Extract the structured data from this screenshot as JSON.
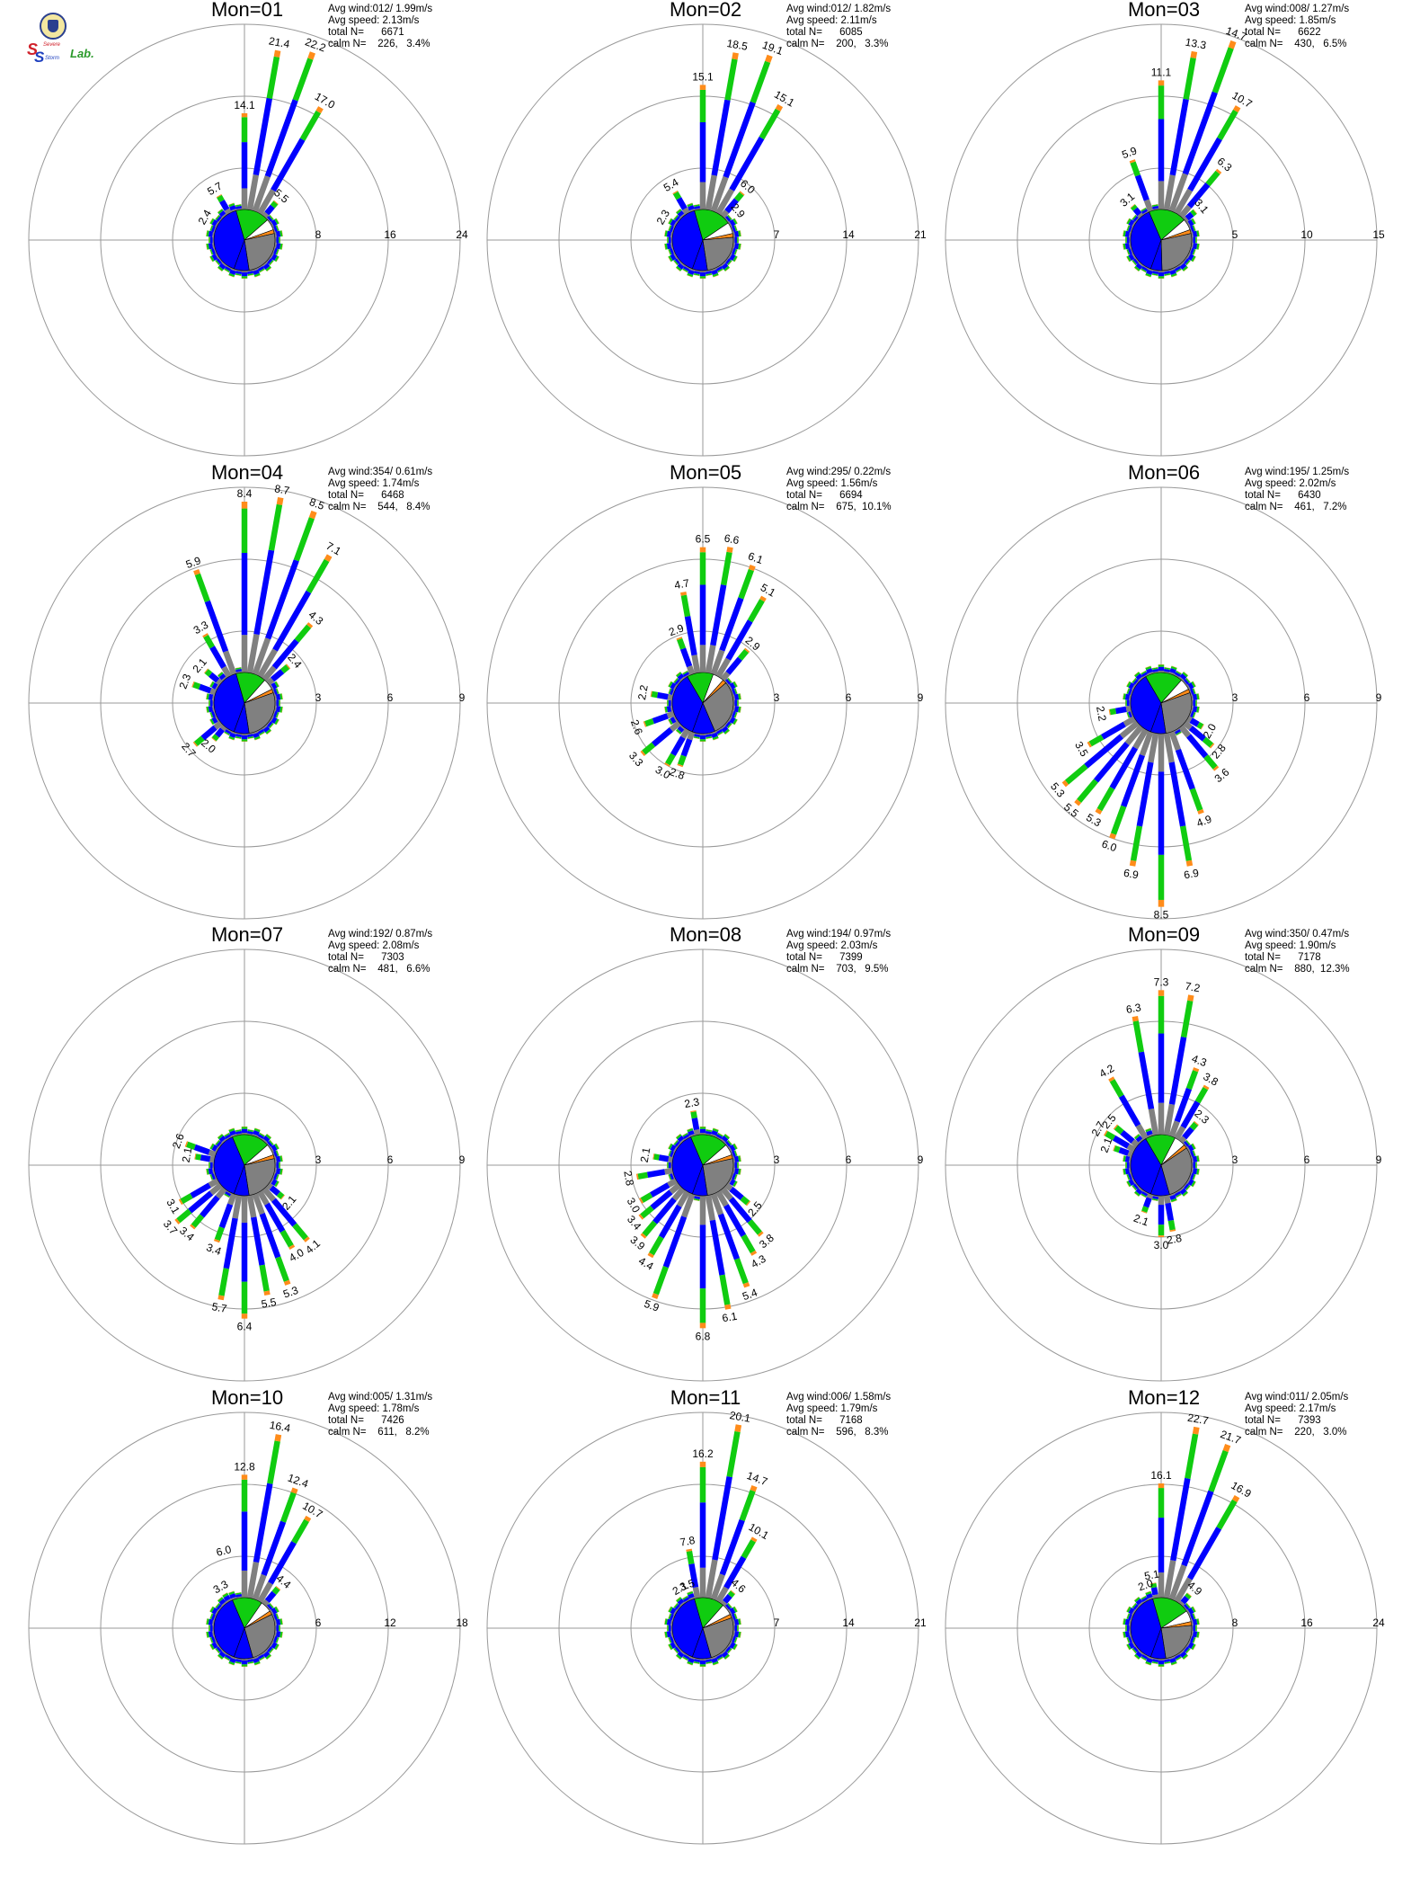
{
  "colors": {
    "blue": "#0000ff",
    "green": "#10cc10",
    "orange": "#ff8c1a",
    "red": "#ff0000",
    "magenta": "#cc00cc",
    "gray": "#808080",
    "grid": "#999999"
  },
  "logo": {
    "alt_text": "Severe Storm Lab.",
    "line1": "Severe",
    "line2": "Storm",
    "lab": "Lab."
  },
  "chart_data": [
    {
      "type": "wind-rose",
      "title": "Mon=01",
      "rings": [
        "8",
        "16",
        "24"
      ],
      "ring_max": 24,
      "stats": {
        "avg_wind": "Avg wind:012/ 1.99m/s",
        "avg_speed": "Avg speed: 2.13m/s",
        "total": "total N=      6671",
        "calm": "calm N=    226,   3.4%"
      },
      "labels": [
        {
          "dir": 300,
          "text": "2.4"
        },
        {
          "dir": 330,
          "text": "5.7"
        },
        {
          "dir": 0,
          "text": "14.1"
        },
        {
          "dir": 10,
          "text": "21.4"
        },
        {
          "dir": 20,
          "text": "22.2"
        },
        {
          "dir": 30,
          "text": "17.0"
        },
        {
          "dir": 40,
          "text": "5.5"
        }
      ],
      "pie": {
        "blue": 0.4,
        "green": 0.18,
        "orange": 0.02,
        "gray": 0.26
      }
    },
    {
      "type": "wind-rose",
      "title": "Mon=02",
      "rings": [
        "7",
        "14",
        "21"
      ],
      "ring_max": 21,
      "stats": {
        "avg_wind": "Avg wind:012/ 1.82m/s",
        "avg_speed": "Avg speed: 2.11m/s",
        "total": "total N=      6085",
        "calm": "calm N=    200,   3.3%"
      },
      "labels": [
        {
          "dir": 300,
          "text": "2.3"
        },
        {
          "dir": 330,
          "text": "5.4"
        },
        {
          "dir": 0,
          "text": "15.1"
        },
        {
          "dir": 10,
          "text": "18.5"
        },
        {
          "dir": 20,
          "text": "19.1"
        },
        {
          "dir": 30,
          "text": "15.1"
        },
        {
          "dir": 40,
          "text": "6.0"
        },
        {
          "dir": 50,
          "text": "2.9"
        }
      ],
      "pie": {
        "blue": 0.4,
        "green": 0.2,
        "orange": 0.02,
        "gray": 0.24
      }
    },
    {
      "type": "wind-rose",
      "title": "Mon=03",
      "rings": [
        "5",
        "10",
        "15"
      ],
      "ring_max": 15,
      "stats": {
        "avg_wind": "Avg wind:008/ 1.27m/s",
        "avg_speed": "Avg speed: 1.85m/s",
        "total": "total N=      6622",
        "calm": "calm N=    430,   6.5%"
      },
      "labels": [
        {
          "dir": 320,
          "text": "3.1"
        },
        {
          "dir": 340,
          "text": "5.9"
        },
        {
          "dir": 0,
          "text": "11.1"
        },
        {
          "dir": 10,
          "text": "13.3"
        },
        {
          "dir": 20,
          "text": "14.7"
        },
        {
          "dir": 30,
          "text": "10.7"
        },
        {
          "dir": 40,
          "text": "6.3"
        },
        {
          "dir": 50,
          "text": "3.1"
        }
      ],
      "pie": {
        "blue": 0.38,
        "green": 0.2,
        "orange": 0.02,
        "gray": 0.28
      }
    },
    {
      "type": "wind-rose",
      "title": "Mon=04",
      "rings": [
        "3",
        "6",
        "9"
      ],
      "ring_max": 9,
      "stats": {
        "avg_wind": "Avg wind:354/ 0.61m/s",
        "avg_speed": "Avg speed: 1.74m/s",
        "total": "total N=      6468",
        "calm": "calm N=    544,   8.4%"
      },
      "labels": [
        {
          "dir": 230,
          "text": "2.7"
        },
        {
          "dir": 220,
          "text": "2.0"
        },
        {
          "dir": 290,
          "text": "2.3"
        },
        {
          "dir": 310,
          "text": "2.1"
        },
        {
          "dir": 330,
          "text": "3.3"
        },
        {
          "dir": 340,
          "text": "5.9"
        },
        {
          "dir": 0,
          "text": "8.4"
        },
        {
          "dir": 10,
          "text": "8.7"
        },
        {
          "dir": 20,
          "text": "8.5"
        },
        {
          "dir": 30,
          "text": "7.1"
        },
        {
          "dir": 40,
          "text": "4.3"
        },
        {
          "dir": 50,
          "text": "2.4"
        }
      ],
      "pie": {
        "blue": 0.4,
        "green": 0.16,
        "orange": 0.02,
        "gray": 0.28
      }
    },
    {
      "type": "wind-rose",
      "title": "Mon=05",
      "rings": [
        "3",
        "6",
        "9"
      ],
      "ring_max": 9,
      "stats": {
        "avg_wind": "Avg wind:295/ 0.22m/s",
        "avg_speed": "Avg speed: 1.56m/s",
        "total": "total N=      6694",
        "calm": "calm N=    675,  10.1%"
      },
      "labels": [
        {
          "dir": 250,
          "text": "2.6"
        },
        {
          "dir": 280,
          "text": "2.2"
        },
        {
          "dir": 340,
          "text": "2.9"
        },
        {
          "dir": 350,
          "text": "4.7"
        },
        {
          "dir": 0,
          "text": "6.5"
        },
        {
          "dir": 10,
          "text": "6.6"
        },
        {
          "dir": 20,
          "text": "6.1"
        },
        {
          "dir": 30,
          "text": "5.1"
        },
        {
          "dir": 40,
          "text": "2.9"
        },
        {
          "dir": 200,
          "text": "2.8"
        },
        {
          "dir": 210,
          "text": "3.0"
        },
        {
          "dir": 230,
          "text": "3.3"
        }
      ],
      "pie": {
        "blue": 0.36,
        "green": 0.14,
        "orange": 0.02,
        "gray": 0.3
      }
    },
    {
      "type": "wind-rose",
      "title": "Mon=06",
      "rings": [
        "3",
        "6",
        "9"
      ],
      "ring_max": 9,
      "stats": {
        "avg_wind": "Avg wind:195/ 1.25m/s",
        "avg_speed": "Avg speed: 2.02m/s",
        "total": "total N=      6430",
        "calm": "calm N=    461,   7.2%"
      },
      "labels": [
        {
          "dir": 120,
          "text": "2.0"
        },
        {
          "dir": 130,
          "text": "2.8"
        },
        {
          "dir": 140,
          "text": "3.6"
        },
        {
          "dir": 160,
          "text": "4.9"
        },
        {
          "dir": 170,
          "text": "6.9"
        },
        {
          "dir": 180,
          "text": "8.5"
        },
        {
          "dir": 190,
          "text": "6.9"
        },
        {
          "dir": 200,
          "text": "6.0"
        },
        {
          "dir": 210,
          "text": "5.3"
        },
        {
          "dir": 220,
          "text": "5.5"
        },
        {
          "dir": 230,
          "text": "5.3"
        },
        {
          "dir": 240,
          "text": "3.5"
        },
        {
          "dir": 260,
          "text": "2.2"
        }
      ],
      "pie": {
        "blue": 0.36,
        "green": 0.2,
        "orange": 0.02,
        "gray": 0.28
      }
    },
    {
      "type": "wind-rose",
      "title": "Mon=07",
      "rings": [
        "3",
        "6",
        "9"
      ],
      "ring_max": 9,
      "stats": {
        "avg_wind": "Avg wind:192/ 0.87m/s",
        "avg_speed": "Avg speed: 2.08m/s",
        "total": "total N=      7303",
        "calm": "calm N=    481,   6.6%"
      },
      "labels": [
        {
          "dir": 280,
          "text": "2.1"
        },
        {
          "dir": 290,
          "text": "2.6"
        },
        {
          "dir": 240,
          "text": "3.1"
        },
        {
          "dir": 230,
          "text": "3.7"
        },
        {
          "dir": 220,
          "text": "3.4"
        },
        {
          "dir": 200,
          "text": "3.4"
        },
        {
          "dir": 190,
          "text": "5.7"
        },
        {
          "dir": 180,
          "text": "6.4"
        },
        {
          "dir": 170,
          "text": "5.5"
        },
        {
          "dir": 160,
          "text": "5.3"
        },
        {
          "dir": 150,
          "text": "4.0"
        },
        {
          "dir": 140,
          "text": "4.1"
        },
        {
          "dir": 130,
          "text": "2.1"
        }
      ],
      "pie": {
        "blue": 0.38,
        "green": 0.2,
        "orange": 0.02,
        "gray": 0.26
      }
    },
    {
      "type": "wind-rose",
      "title": "Mon=08",
      "rings": [
        "3",
        "6",
        "9"
      ],
      "ring_max": 9,
      "stats": {
        "avg_wind": "Avg wind:194/ 0.97m/s",
        "avg_speed": "Avg speed: 2.03m/s",
        "total": "total N=      7399",
        "calm": "calm N=    703,   9.5%"
      },
      "labels": [
        {
          "dir": 350,
          "text": "2.3"
        },
        {
          "dir": 280,
          "text": "2.1"
        },
        {
          "dir": 260,
          "text": "2.8"
        },
        {
          "dir": 240,
          "text": "3.0"
        },
        {
          "dir": 230,
          "text": "3.4"
        },
        {
          "dir": 220,
          "text": "3.9"
        },
        {
          "dir": 210,
          "text": "4.4"
        },
        {
          "dir": 200,
          "text": "5.9"
        },
        {
          "dir": 180,
          "text": "6.8"
        },
        {
          "dir": 170,
          "text": "6.1"
        },
        {
          "dir": 160,
          "text": "5.4"
        },
        {
          "dir": 150,
          "text": "4.3"
        },
        {
          "dir": 140,
          "text": "3.8"
        },
        {
          "dir": 130,
          "text": "2.5"
        }
      ],
      "pie": {
        "blue": 0.38,
        "green": 0.2,
        "orange": 0.02,
        "gray": 0.26
      }
    },
    {
      "type": "wind-rose",
      "title": "Mon=09",
      "rings": [
        "3",
        "6",
        "9"
      ],
      "ring_max": 9,
      "stats": {
        "avg_wind": "Avg wind:350/ 0.47m/s",
        "avg_speed": "Avg speed: 1.90m/s",
        "total": "total N=      7178",
        "calm": "calm N=    880,  12.3%"
      },
      "labels": [
        {
          "dir": 290,
          "text": "2.1"
        },
        {
          "dir": 300,
          "text": "2.7"
        },
        {
          "dir": 310,
          "text": "2.5"
        },
        {
          "dir": 330,
          "text": "4.2"
        },
        {
          "dir": 350,
          "text": "6.3"
        },
        {
          "dir": 0,
          "text": "7.3"
        },
        {
          "dir": 10,
          "text": "7.2"
        },
        {
          "dir": 20,
          "text": "4.3"
        },
        {
          "dir": 30,
          "text": "3.8"
        },
        {
          "dir": 40,
          "text": "2.3"
        },
        {
          "dir": 180,
          "text": "3.0"
        },
        {
          "dir": 170,
          "text": "2.8"
        },
        {
          "dir": 200,
          "text": "2.1"
        }
      ],
      "pie": {
        "blue": 0.36,
        "green": 0.16,
        "orange": 0.02,
        "gray": 0.3
      }
    },
    {
      "type": "wind-rose",
      "title": "Mon=10",
      "rings": [
        "6",
        "12",
        "18"
      ],
      "ring_max": 18,
      "stats": {
        "avg_wind": "Avg wind:005/ 1.31m/s",
        "avg_speed": "Avg speed: 1.78m/s",
        "total": "total N=      7426",
        "calm": "calm N=    611,   8.2%"
      },
      "labels": [
        {
          "dir": 330,
          "text": "3.3"
        },
        {
          "dir": 345,
          "text": "6.0"
        },
        {
          "dir": 0,
          "text": "12.8"
        },
        {
          "dir": 10,
          "text": "16.4"
        },
        {
          "dir": 20,
          "text": "12.4"
        },
        {
          "dir": 30,
          "text": "10.7"
        },
        {
          "dir": 40,
          "text": "4.4"
        }
      ],
      "pie": {
        "blue": 0.38,
        "green": 0.16,
        "orange": 0.02,
        "gray": 0.28
      }
    },
    {
      "type": "wind-rose",
      "title": "Mon=11",
      "rings": [
        "7",
        "14",
        "21"
      ],
      "ring_max": 21,
      "stats": {
        "avg_wind": "Avg wind:006/ 1.58m/s",
        "avg_speed": "Avg speed: 1.79m/s",
        "total": "total N=      7168",
        "calm": "calm N=    596,   8.3%"
      },
      "labels": [
        {
          "dir": 330,
          "text": "2.1"
        },
        {
          "dir": 340,
          "text": "3.5"
        },
        {
          "dir": 350,
          "text": "7.8"
        },
        {
          "dir": 0,
          "text": "16.2"
        },
        {
          "dir": 10,
          "text": "20.1"
        },
        {
          "dir": 20,
          "text": "14.7"
        },
        {
          "dir": 30,
          "text": "10.1"
        },
        {
          "dir": 40,
          "text": "4.6"
        }
      ],
      "pie": {
        "blue": 0.4,
        "green": 0.16,
        "orange": 0.02,
        "gray": 0.26
      }
    },
    {
      "type": "wind-rose",
      "title": "Mon=12",
      "rings": [
        "8",
        "16",
        "24"
      ],
      "ring_max": 24,
      "stats": {
        "avg_wind": "Avg wind:011/ 2.05m/s",
        "avg_speed": "Avg speed: 2.17m/s",
        "total": "total N=      7393",
        "calm": "calm N=    220,   3.0%"
      },
      "labels": [
        {
          "dir": 340,
          "text": "2.0"
        },
        {
          "dir": 350,
          "text": "5.1"
        },
        {
          "dir": 0,
          "text": "16.1"
        },
        {
          "dir": 10,
          "text": "22.7"
        },
        {
          "dir": 20,
          "text": "21.7"
        },
        {
          "dir": 30,
          "text": "16.9"
        },
        {
          "dir": 40,
          "text": "4.9"
        }
      ],
      "pie": {
        "blue": 0.4,
        "green": 0.2,
        "orange": 0.02,
        "gray": 0.24
      }
    }
  ]
}
